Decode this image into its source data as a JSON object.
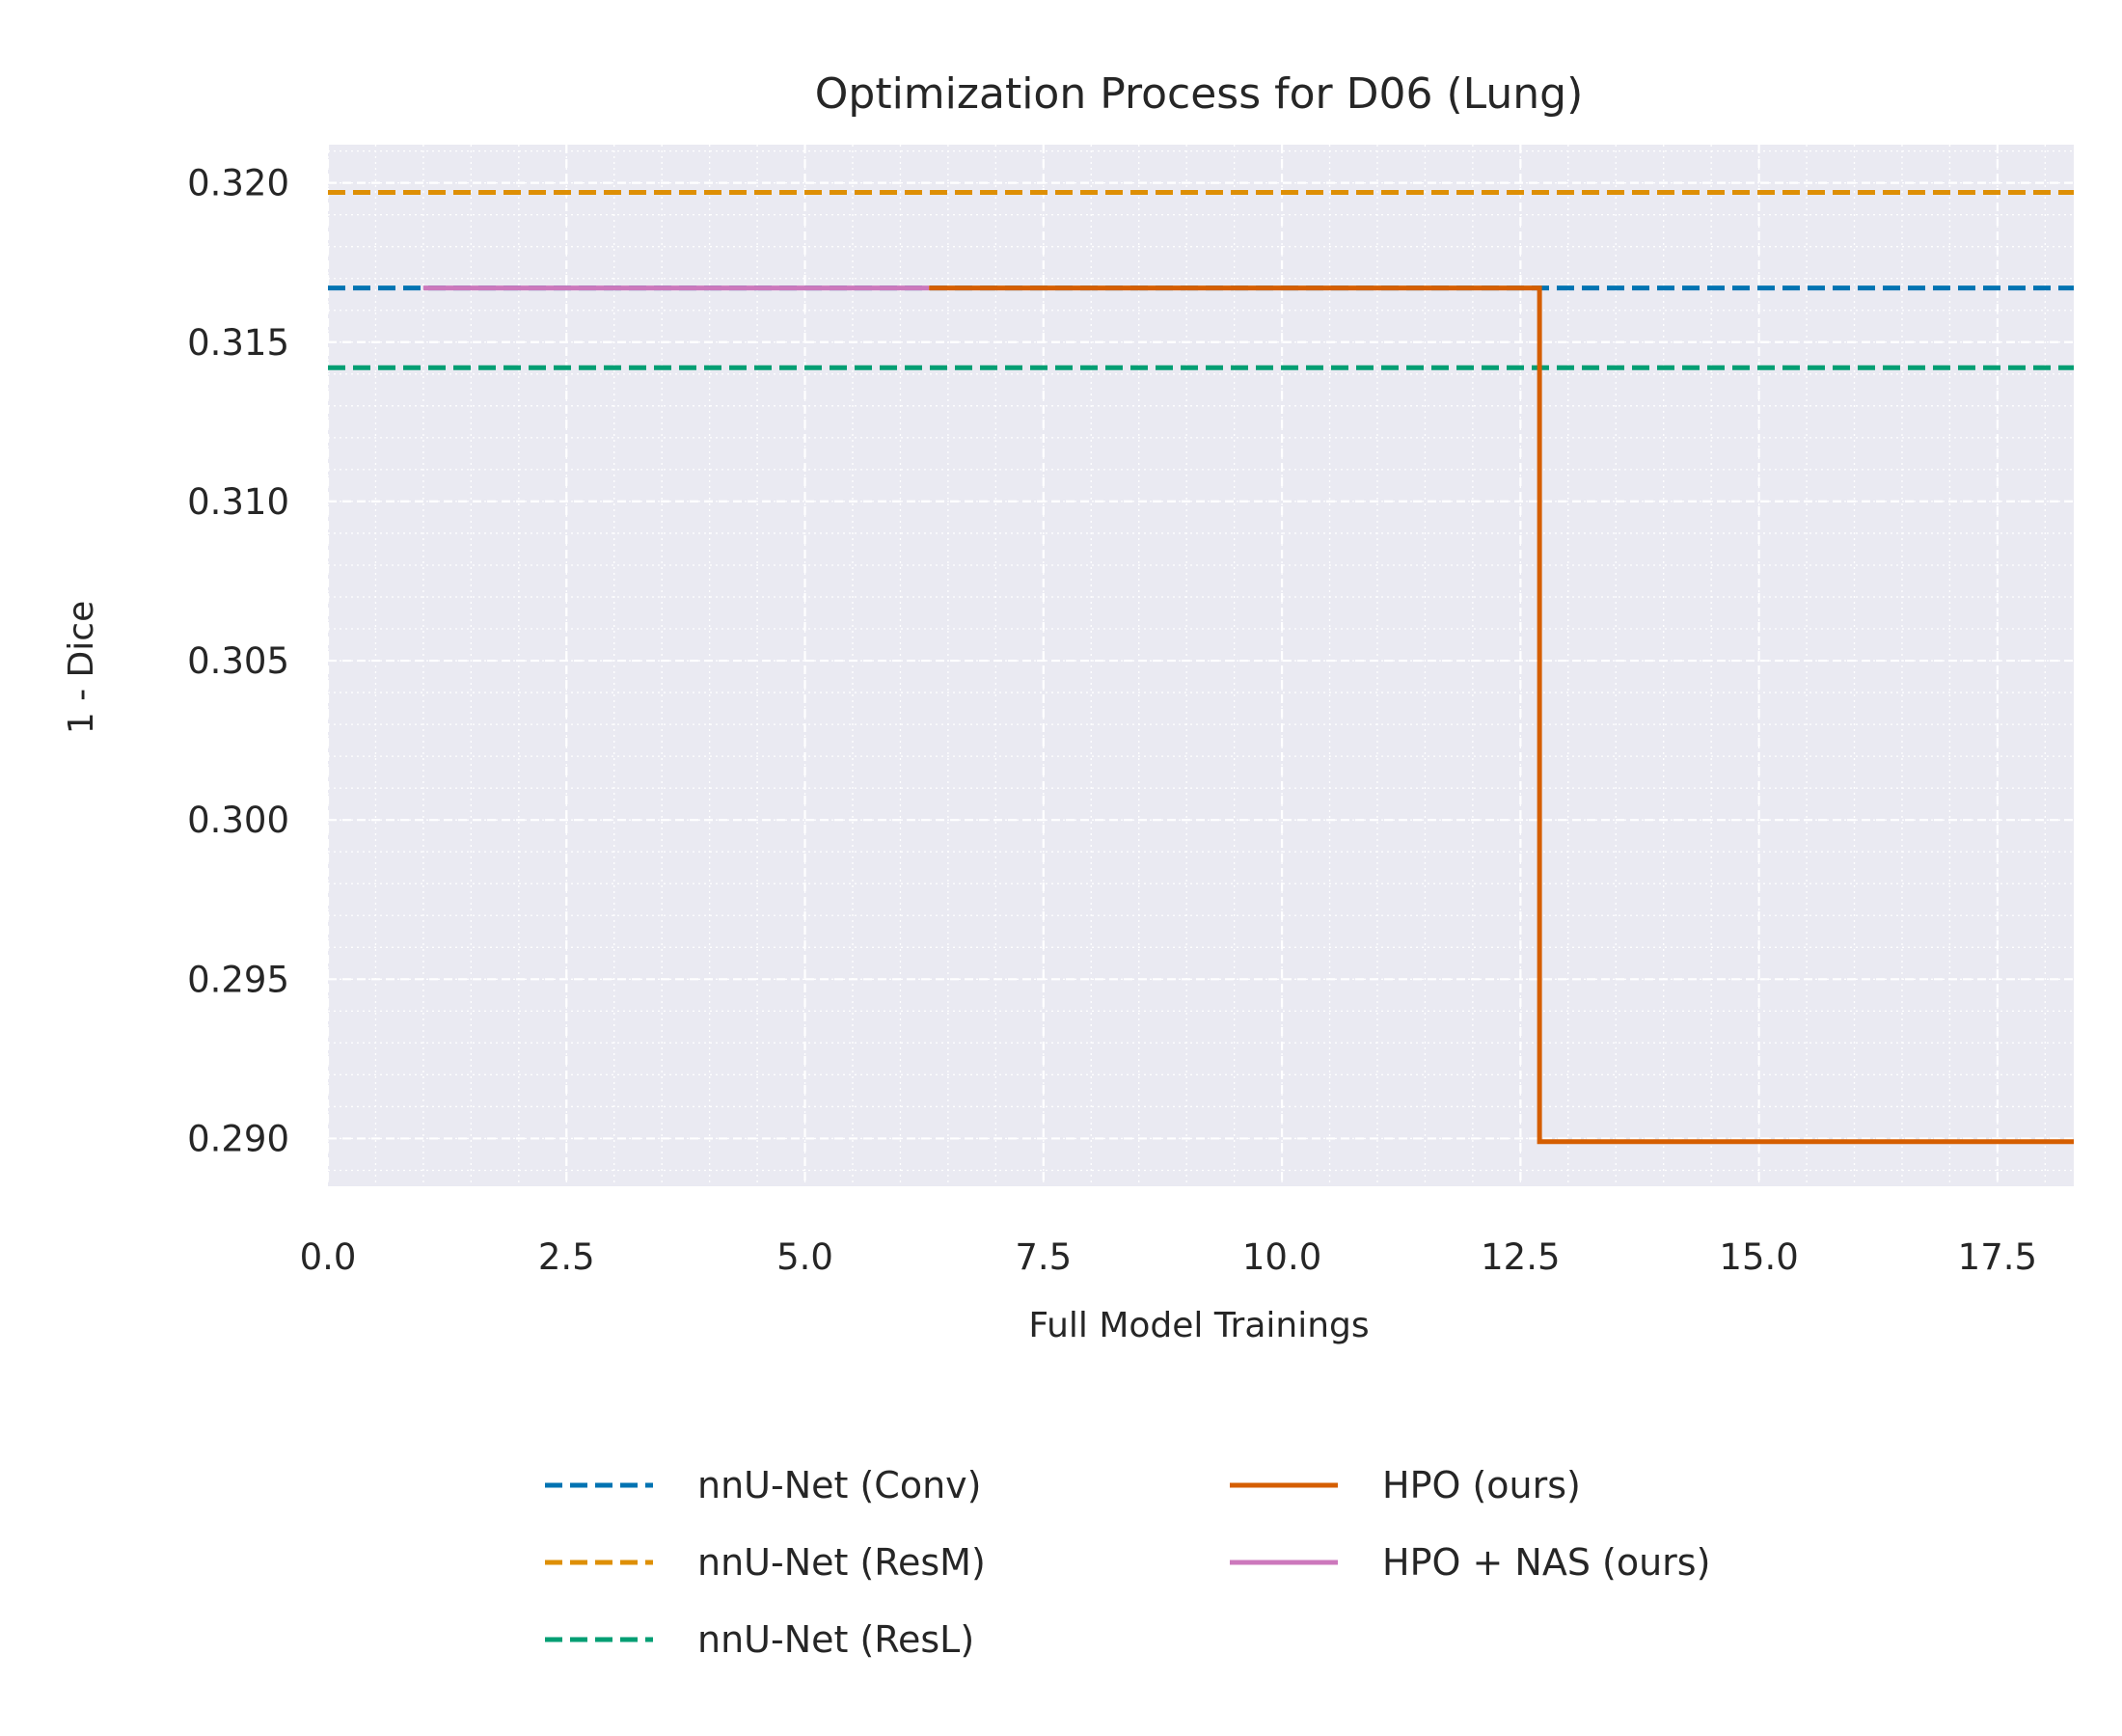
{
  "chart_data": {
    "type": "line",
    "title": "Optimization Process for D06 (Lung)",
    "xlabel": "Full Model Trainings",
    "ylabel": "1 - Dice",
    "xlim": [
      0,
      18.3
    ],
    "ylim": [
      0.2885,
      0.3212
    ],
    "xticks": [
      0.0,
      2.5,
      5.0,
      7.5,
      10.0,
      12.5,
      15.0,
      17.5
    ],
    "xtick_labels": [
      "0.0",
      "2.5",
      "5.0",
      "7.5",
      "10.0",
      "12.5",
      "15.0",
      "17.5"
    ],
    "yticks": [
      0.29,
      0.295,
      0.3,
      0.305,
      0.31,
      0.315,
      0.32
    ],
    "ytick_labels": [
      "0.290",
      "0.295",
      "0.300",
      "0.305",
      "0.310",
      "0.315",
      "0.320"
    ],
    "grid": true,
    "background": "#eaeaf2",
    "legend_placement": "bottom-center",
    "series": [
      {
        "name": "nnU-Net (Conv)",
        "style": "dashed",
        "color": "#0173b2",
        "x": [
          0,
          18.3
        ],
        "y": [
          0.3167,
          0.3167
        ]
      },
      {
        "name": "nnU-Net (ResM)",
        "style": "dashed",
        "color": "#de8f05",
        "x": [
          0,
          18.3
        ],
        "y": [
          0.3197,
          0.3197
        ]
      },
      {
        "name": "nnU-Net (ResL)",
        "style": "dashed",
        "color": "#029e73",
        "x": [
          0,
          18.3
        ],
        "y": [
          0.3142,
          0.3142
        ]
      },
      {
        "name": "HPO (ours)",
        "style": "step",
        "color": "#d55e00",
        "x": [
          6.3,
          12.7,
          12.7,
          18.3
        ],
        "y": [
          0.3167,
          0.3167,
          0.2899,
          0.2899
        ]
      },
      {
        "name": "HPO + NAS (ours)",
        "style": "solid",
        "color": "#cc78bc",
        "x": [
          1.0,
          6.3
        ],
        "y": [
          0.3167,
          0.3167
        ]
      }
    ]
  }
}
